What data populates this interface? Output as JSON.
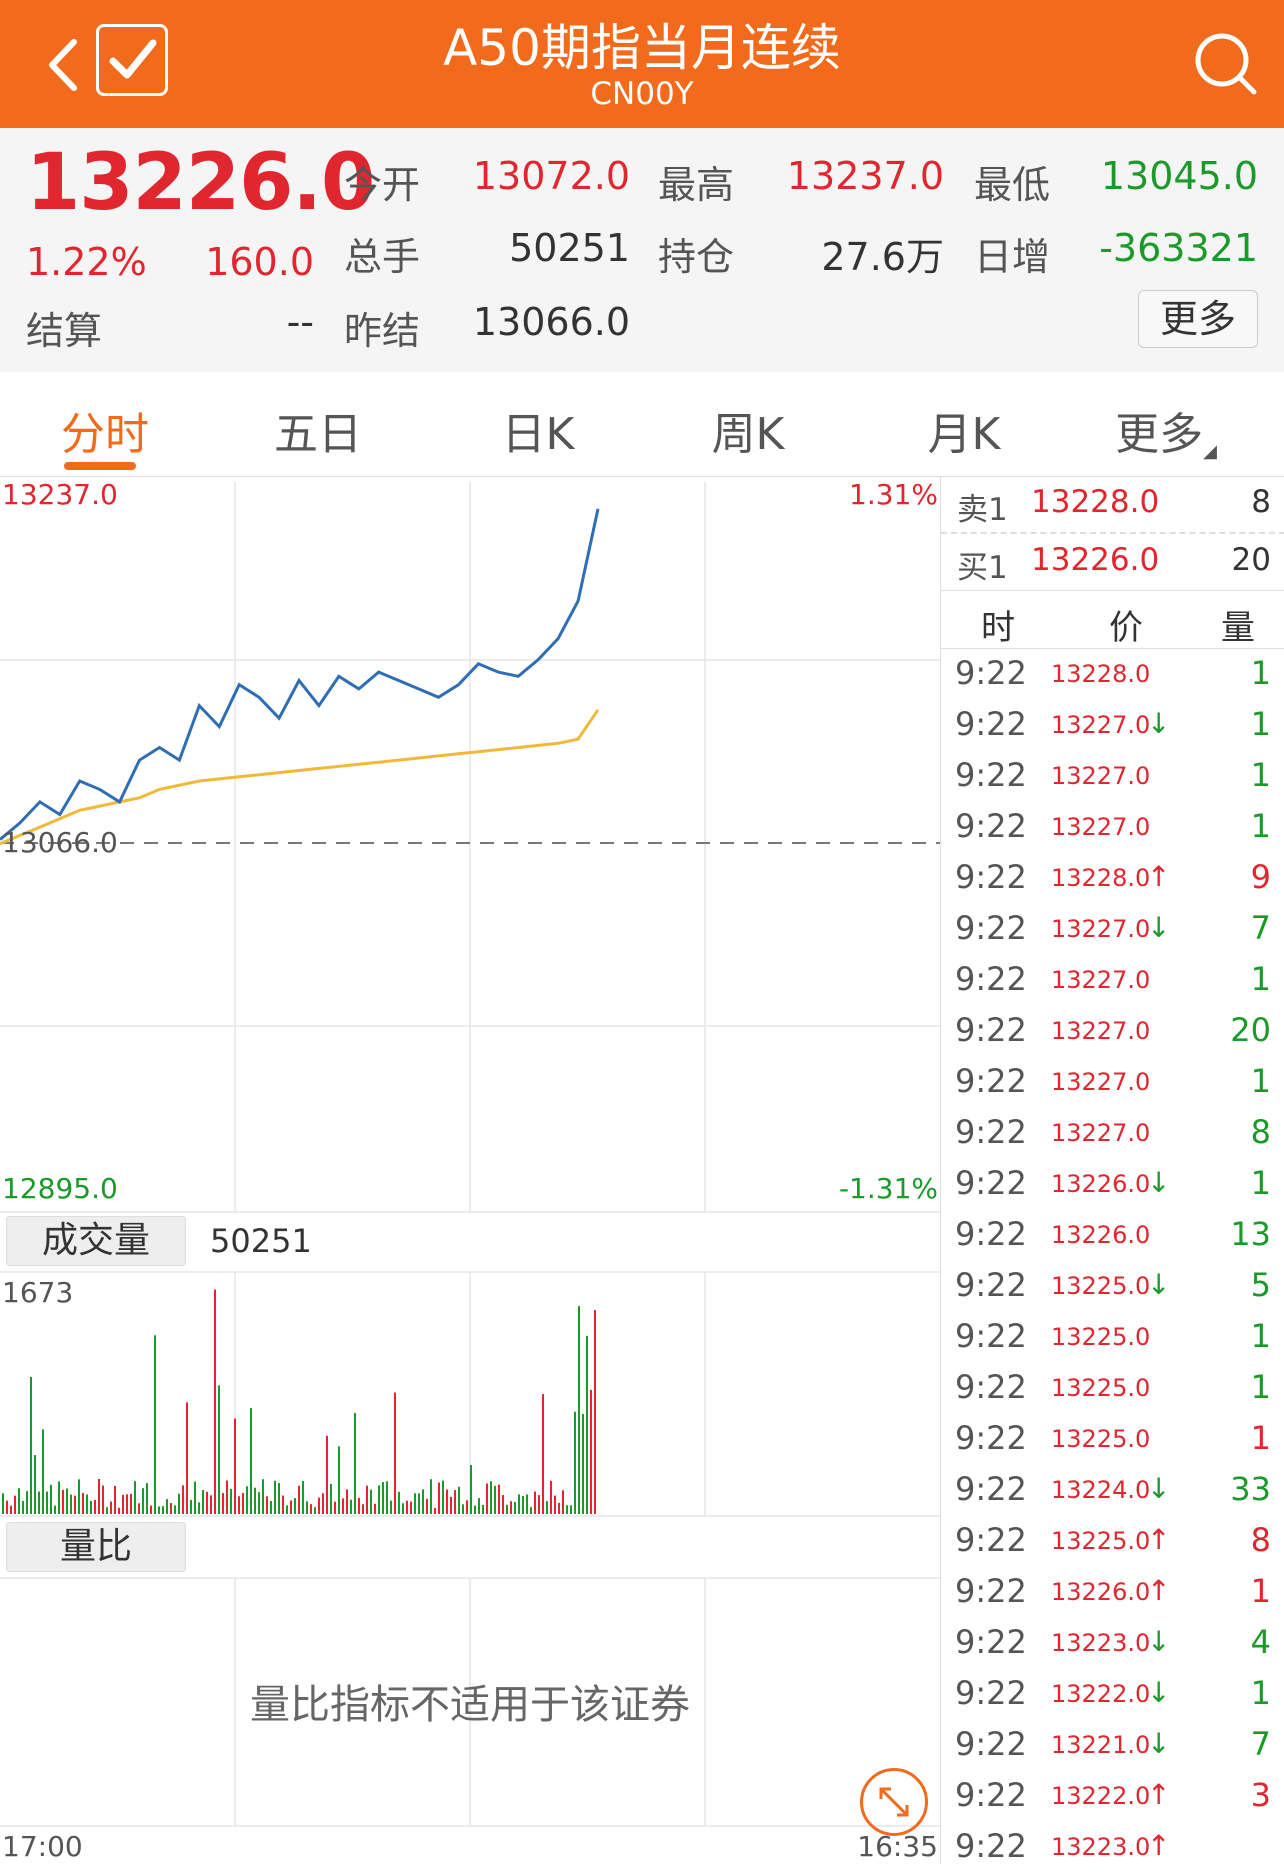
{
  "header": {
    "title": "A50期指当月连续",
    "code": "CN00Y"
  },
  "quote": {
    "price": "13226.0",
    "change_pct": "1.22%",
    "change": "160.0",
    "open_label": "今开",
    "open": "13072.0",
    "high_label": "最高",
    "high": "13237.0",
    "low_label": "最低",
    "low": "13045.0",
    "volume_label": "总手",
    "volume": "50251",
    "oi_label": "持仓",
    "oi": "27.6万",
    "daily_inc_label": "日增",
    "daily_inc": "-363321",
    "settle_label": "结算",
    "settle": "--",
    "prev_settle_label": "昨结",
    "prev_settle": "13066.0",
    "more_label": "更多"
  },
  "tabs": [
    "分时",
    "五日",
    "日K",
    "周K",
    "月K",
    "更多"
  ],
  "chart": {
    "y_top": "13237.0",
    "y_bottom": "12895.0",
    "y_mid": "13066.0",
    "pct_top": "1.31%",
    "pct_bottom": "-1.31%",
    "x_start": "17:00",
    "x_end": "16:35",
    "vol_tab": "成交量",
    "vol_total": "50251",
    "vol_max": "1673",
    "lb_tab": "量比",
    "lb_msg": "量比指标不适用于该证券"
  },
  "chart_data": {
    "type": "line",
    "ylim": [
      12895.0,
      13237.0
    ],
    "reference": 13066.0,
    "series": [
      {
        "values": [
          13070,
          13078,
          13088,
          13082,
          13098,
          13094,
          13088,
          13108,
          13114,
          13108,
          13134,
          13124,
          13144,
          13138,
          13128,
          13146,
          13134,
          13148,
          13142,
          13150,
          13146,
          13142,
          13138,
          13144,
          13154,
          13150,
          13148,
          13156,
          13166,
          13184,
          13228
        ]
      },
      {
        "values": [
          13068,
          13072,
          13076,
          13080,
          13084,
          13086,
          13088,
          13090,
          13094,
          13096,
          13098,
          13099,
          13100,
          13101,
          13102,
          13103,
          13104,
          13105,
          13106,
          13107,
          13108,
          13109,
          13110,
          13111,
          13112,
          13113,
          13114,
          13115,
          13116,
          13118,
          13132
        ]
      }
    ]
  },
  "order_book": [
    {
      "label": "卖1",
      "price": "13228.0",
      "vol": "8"
    },
    {
      "label": "买1",
      "price": "13226.0",
      "vol": "20"
    }
  ],
  "trades_header": {
    "time": "时",
    "price": "价",
    "vol": "量"
  },
  "trades": [
    {
      "time": "9:22",
      "price": "13228.0",
      "arrow": "",
      "vol": "1",
      "vcolor": "green"
    },
    {
      "time": "9:22",
      "price": "13227.0",
      "arrow": "↓",
      "vol": "1",
      "vcolor": "green"
    },
    {
      "time": "9:22",
      "price": "13227.0",
      "arrow": "",
      "vol": "1",
      "vcolor": "green"
    },
    {
      "time": "9:22",
      "price": "13227.0",
      "arrow": "",
      "vol": "1",
      "vcolor": "green"
    },
    {
      "time": "9:22",
      "price": "13228.0",
      "arrow": "↑",
      "vol": "9",
      "vcolor": "red"
    },
    {
      "time": "9:22",
      "price": "13227.0",
      "arrow": "↓",
      "vol": "7",
      "vcolor": "green"
    },
    {
      "time": "9:22",
      "price": "13227.0",
      "arrow": "",
      "vol": "1",
      "vcolor": "green"
    },
    {
      "time": "9:22",
      "price": "13227.0",
      "arrow": "",
      "vol": "20",
      "vcolor": "green"
    },
    {
      "time": "9:22",
      "price": "13227.0",
      "arrow": "",
      "vol": "1",
      "vcolor": "green"
    },
    {
      "time": "9:22",
      "price": "13227.0",
      "arrow": "",
      "vol": "8",
      "vcolor": "green"
    },
    {
      "time": "9:22",
      "price": "13226.0",
      "arrow": "↓",
      "vol": "1",
      "vcolor": "green"
    },
    {
      "time": "9:22",
      "price": "13226.0",
      "arrow": "",
      "vol": "13",
      "vcolor": "green"
    },
    {
      "time": "9:22",
      "price": "13225.0",
      "arrow": "↓",
      "vol": "5",
      "vcolor": "green"
    },
    {
      "time": "9:22",
      "price": "13225.0",
      "arrow": "",
      "vol": "1",
      "vcolor": "green"
    },
    {
      "time": "9:22",
      "price": "13225.0",
      "arrow": "",
      "vol": "1",
      "vcolor": "green"
    },
    {
      "time": "9:22",
      "price": "13225.0",
      "arrow": "",
      "vol": "1",
      "vcolor": "red"
    },
    {
      "time": "9:22",
      "price": "13224.0",
      "arrow": "↓",
      "vol": "33",
      "vcolor": "green"
    },
    {
      "time": "9:22",
      "price": "13225.0",
      "arrow": "↑",
      "vol": "8",
      "vcolor": "red"
    },
    {
      "time": "9:22",
      "price": "13226.0",
      "arrow": "↑",
      "vol": "1",
      "vcolor": "red"
    },
    {
      "time": "9:22",
      "price": "13223.0",
      "arrow": "↓",
      "vol": "4",
      "vcolor": "green"
    },
    {
      "time": "9:22",
      "price": "13222.0",
      "arrow": "↓",
      "vol": "1",
      "vcolor": "green"
    },
    {
      "time": "9:22",
      "price": "13221.0",
      "arrow": "↓",
      "vol": "7",
      "vcolor": "green"
    },
    {
      "time": "9:22",
      "price": "13222.0",
      "arrow": "↑",
      "vol": "3",
      "vcolor": "red"
    },
    {
      "time": "9:22",
      "price": "13223.0",
      "arrow": "↑",
      "vol": "",
      "vcolor": "red"
    }
  ],
  "colors": {
    "accent": "#f26a1b",
    "up": "#e0262e",
    "down": "#1b9a2a",
    "price_line": "#2f6db5",
    "avg_line": "#f0b93a"
  }
}
